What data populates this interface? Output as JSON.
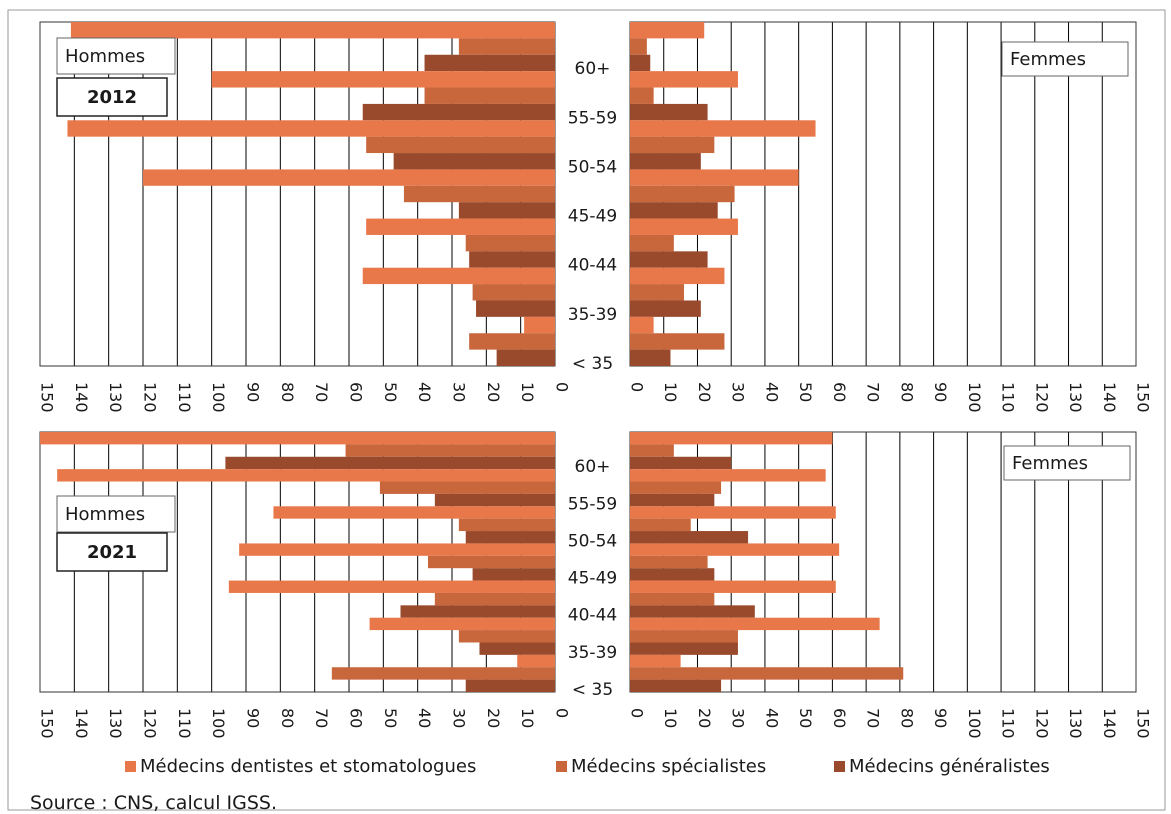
{
  "colors": {
    "dentistes": "#e8784a",
    "specialistes": "#c8663c",
    "generalistes": "#9a4a2c",
    "grid": "#000000",
    "frame": "#333333"
  },
  "legend": [
    {
      "key": "dentistes",
      "label": "Médecins dentistes et stomatologues"
    },
    {
      "key": "specialistes",
      "label": "Médecins spécialistes"
    },
    {
      "key": "generalistes",
      "label": "Médecins généralistes"
    }
  ],
  "source": "Source : CNS, calcul IGSS.",
  "chart_data": [
    {
      "type": "bar",
      "year": "2012",
      "men_label": "Hommes",
      "women_label": "Femmes",
      "categories": [
        "60+",
        "55-59",
        "50-54",
        "45-49",
        "40-44",
        "35-39",
        "< 35"
      ],
      "xlim": [
        0,
        150
      ],
      "ticks": [
        "0",
        "10",
        "20",
        "30",
        "40",
        "50",
        "60",
        "70",
        "80",
        "90",
        "100",
        "110",
        "120",
        "130",
        "140",
        "150"
      ],
      "men": [
        {
          "name": "Médecins dentistes et stomatologues",
          "key": "dentistes",
          "values": [
            141,
            100,
            142,
            120,
            55,
            56,
            9
          ]
        },
        {
          "name": "Médecins spécialistes",
          "key": "specialistes",
          "values": [
            28,
            38,
            55,
            44,
            26,
            24,
            25
          ]
        },
        {
          "name": "Médecins généralistes",
          "key": "generalistes",
          "values": [
            38,
            56,
            47,
            28,
            25,
            23,
            17
          ]
        }
      ],
      "women": [
        {
          "name": "Médecins dentistes et stomatologues",
          "key": "dentistes",
          "values": [
            22,
            32,
            55,
            50,
            32,
            28,
            7
          ]
        },
        {
          "name": "Médecins spécialistes",
          "key": "specialistes",
          "values": [
            5,
            7,
            25,
            31,
            13,
            16,
            28
          ]
        },
        {
          "name": "Médecins généralistes",
          "key": "generalistes",
          "values": [
            6,
            23,
            21,
            26,
            23,
            21,
            12
          ]
        }
      ]
    },
    {
      "type": "bar",
      "year": "2021",
      "men_label": "Hommes",
      "women_label": "Femmes",
      "categories": [
        "60+",
        "55-59",
        "50-54",
        "45-49",
        "40-44",
        "35-39",
        "< 35"
      ],
      "xlim": [
        0,
        150
      ],
      "ticks": [
        "0",
        "10",
        "20",
        "30",
        "40",
        "50",
        "60",
        "70",
        "80",
        "90",
        "100",
        "110",
        "120",
        "130",
        "140",
        "150"
      ],
      "men": [
        {
          "name": "Médecins dentistes et stomatologues",
          "key": "dentistes",
          "values": [
            150,
            145,
            82,
            92,
            95,
            54,
            11
          ]
        },
        {
          "name": "Médecins spécialistes",
          "key": "specialistes",
          "values": [
            61,
            51,
            28,
            37,
            35,
            28,
            65
          ]
        },
        {
          "name": "Médecins généralistes",
          "key": "generalistes",
          "values": [
            96,
            35,
            26,
            24,
            45,
            22,
            26
          ]
        }
      ],
      "women": [
        {
          "name": "Médecins dentistes et stomatologues",
          "key": "dentistes",
          "values": [
            60,
            58,
            61,
            62,
            61,
            74,
            15
          ]
        },
        {
          "name": "Médecins spécialistes",
          "key": "specialistes",
          "values": [
            13,
            27,
            18,
            23,
            25,
            32,
            81
          ]
        },
        {
          "name": "Médecins généralistes",
          "key": "generalistes",
          "values": [
            30,
            25,
            35,
            25,
            37,
            32,
            27
          ]
        }
      ]
    }
  ]
}
